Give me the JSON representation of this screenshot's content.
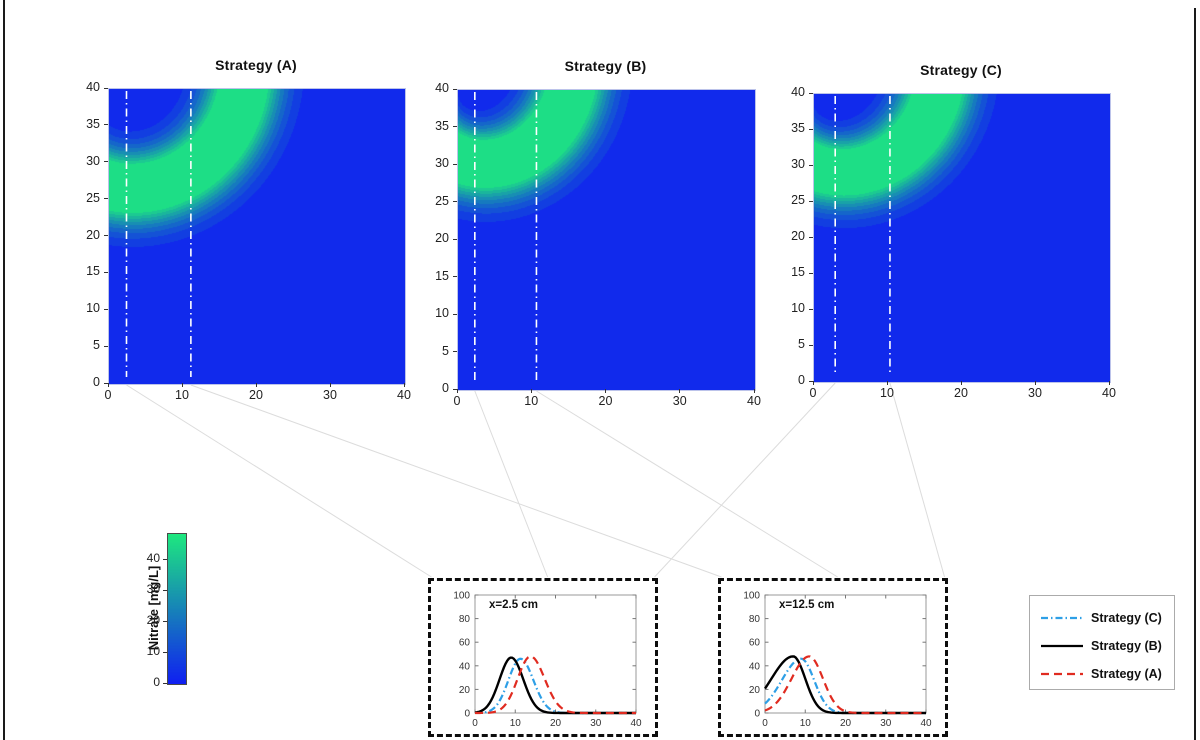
{
  "figure_background": "#ffffff",
  "chart_data": [
    {
      "type": "heatmap",
      "id": "A",
      "title": "Strategy (A)",
      "xlim": [
        0,
        40
      ],
      "ylim": [
        0,
        40
      ],
      "x_ticks": [
        0,
        10,
        20,
        30,
        40
      ],
      "y_ticks": [
        0,
        5,
        10,
        15,
        20,
        25,
        30,
        35,
        40
      ],
      "marker_lines_x": [
        2.5,
        11.2
      ],
      "marker_line_color": "#ffffff",
      "plume": {
        "origin_corner": [
          0,
          40
        ],
        "radius_at_left": 13,
        "radius_at_top": 18,
        "sigma": 3.5,
        "peak": 70,
        "cap": 48,
        "levels": 10
      }
    },
    {
      "type": "heatmap",
      "id": "B",
      "title": "Strategy (B)",
      "xlim": [
        0,
        40
      ],
      "ylim": [
        0,
        40
      ],
      "x_ticks": [
        0,
        10,
        20,
        30,
        40
      ],
      "y_ticks": [
        0,
        5,
        10,
        15,
        20,
        25,
        30,
        35,
        40
      ],
      "marker_lines_x": [
        2.4,
        10.7
      ],
      "marker_line_color": "#ffffff",
      "plume": {
        "origin_corner": [
          0,
          40
        ],
        "radius_at_left": 9,
        "radius_at_top": 15,
        "sigma": 3.5,
        "peak": 70,
        "cap": 48,
        "levels": 10
      }
    },
    {
      "type": "heatmap",
      "id": "C",
      "title": "Strategy (C)",
      "xlim": [
        0,
        40
      ],
      "ylim": [
        0,
        40
      ],
      "x_ticks": [
        0,
        10,
        20,
        30,
        40
      ],
      "y_ticks": [
        0,
        5,
        10,
        15,
        20,
        25,
        30,
        35,
        40
      ],
      "marker_lines_x": [
        3.0,
        10.4
      ],
      "marker_line_color": "#ffffff",
      "plume": {
        "origin_corner": [
          0,
          40
        ],
        "radius_at_left": 10,
        "radius_at_top": 16.5,
        "sigma": 3.5,
        "peak": 70,
        "cap": 48,
        "levels": 10
      }
    },
    {
      "type": "colorbar",
      "label": "Nitrate [mg/L]",
      "ticks": [
        0,
        10,
        20,
        30,
        40
      ],
      "range": [
        0,
        48.5
      ],
      "color_low": "#1020f2",
      "color_high": "#1ee880"
    },
    {
      "type": "line",
      "id": "inset1",
      "annotation": "x=2.5 cm",
      "xlim": [
        0,
        40
      ],
      "ylim": [
        0,
        100
      ],
      "x_ticks": [
        0,
        10,
        20,
        30,
        40
      ],
      "y_ticks": [
        0,
        20,
        40,
        60,
        80,
        100
      ],
      "series": [
        {
          "name": "Strategy (C)",
          "color": "#2e9fe6",
          "style": "dashdot",
          "peak_x": 11.3,
          "peak_y": 46,
          "y_at_x0": 0,
          "bell": {
            "mu": 11.3,
            "sigma_left": 3.0,
            "sigma_right": 3.2,
            "amplitude": 46
          }
        },
        {
          "name": "Strategy (B)",
          "color": "#000000",
          "style": "solid",
          "peak_x": 9,
          "peak_y": 47,
          "y_at_x0": 1,
          "bell": {
            "mu": 9,
            "sigma_left": 2.9,
            "sigma_right": 3.0,
            "amplitude": 47
          }
        },
        {
          "name": "Strategy (A)",
          "color": "#e02b20",
          "style": "dashed",
          "peak_x": 13.8,
          "peak_y": 48,
          "y_at_x0": 0,
          "bell": {
            "mu": 13.8,
            "sigma_left": 3.2,
            "sigma_right": 3.5,
            "amplitude": 48
          }
        }
      ]
    },
    {
      "type": "line",
      "id": "inset2",
      "annotation": "x=12.5 cm",
      "xlim": [
        0,
        40
      ],
      "ylim": [
        0,
        100
      ],
      "x_ticks": [
        0,
        10,
        20,
        30,
        40
      ],
      "y_ticks": [
        0,
        20,
        40,
        60,
        80,
        100
      ],
      "series": [
        {
          "name": "Strategy (C)",
          "color": "#2e9fe6",
          "style": "dashdot",
          "peak_x": 9,
          "peak_y": 46,
          "y_at_x0": 8,
          "bell": {
            "mu": 9,
            "sigma_left": 4.8,
            "sigma_right": 3.2,
            "amplitude": 46
          }
        },
        {
          "name": "Strategy (B)",
          "color": "#000000",
          "style": "solid",
          "peak_x": 7,
          "peak_y": 48,
          "y_at_x0": 21,
          "bell": {
            "mu": 7,
            "sigma_left": 5.4,
            "sigma_right": 3.0,
            "amplitude": 48
          }
        },
        {
          "name": "Strategy (A)",
          "color": "#e02b20",
          "style": "dashed",
          "peak_x": 11,
          "peak_y": 48,
          "y_at_x0": 2,
          "bell": {
            "mu": 11,
            "sigma_left": 4.4,
            "sigma_right": 3.4,
            "amplitude": 48
          }
        }
      ]
    }
  ],
  "legend": {
    "entries": [
      {
        "label": "Strategy (C)",
        "color": "#2e9fe6",
        "style": "dashdot"
      },
      {
        "label": "Strategy (B)",
        "color": "#000000",
        "style": "solid"
      },
      {
        "label": "Strategy (A)",
        "color": "#e02b20",
        "style": "dashed"
      }
    ]
  },
  "connectors": {
    "color": "#dcdcdc",
    "anchor_by_panel": {
      "A": "left",
      "B": "middle",
      "C": "right"
    },
    "note": "each panel marker line links to matching inset box"
  }
}
